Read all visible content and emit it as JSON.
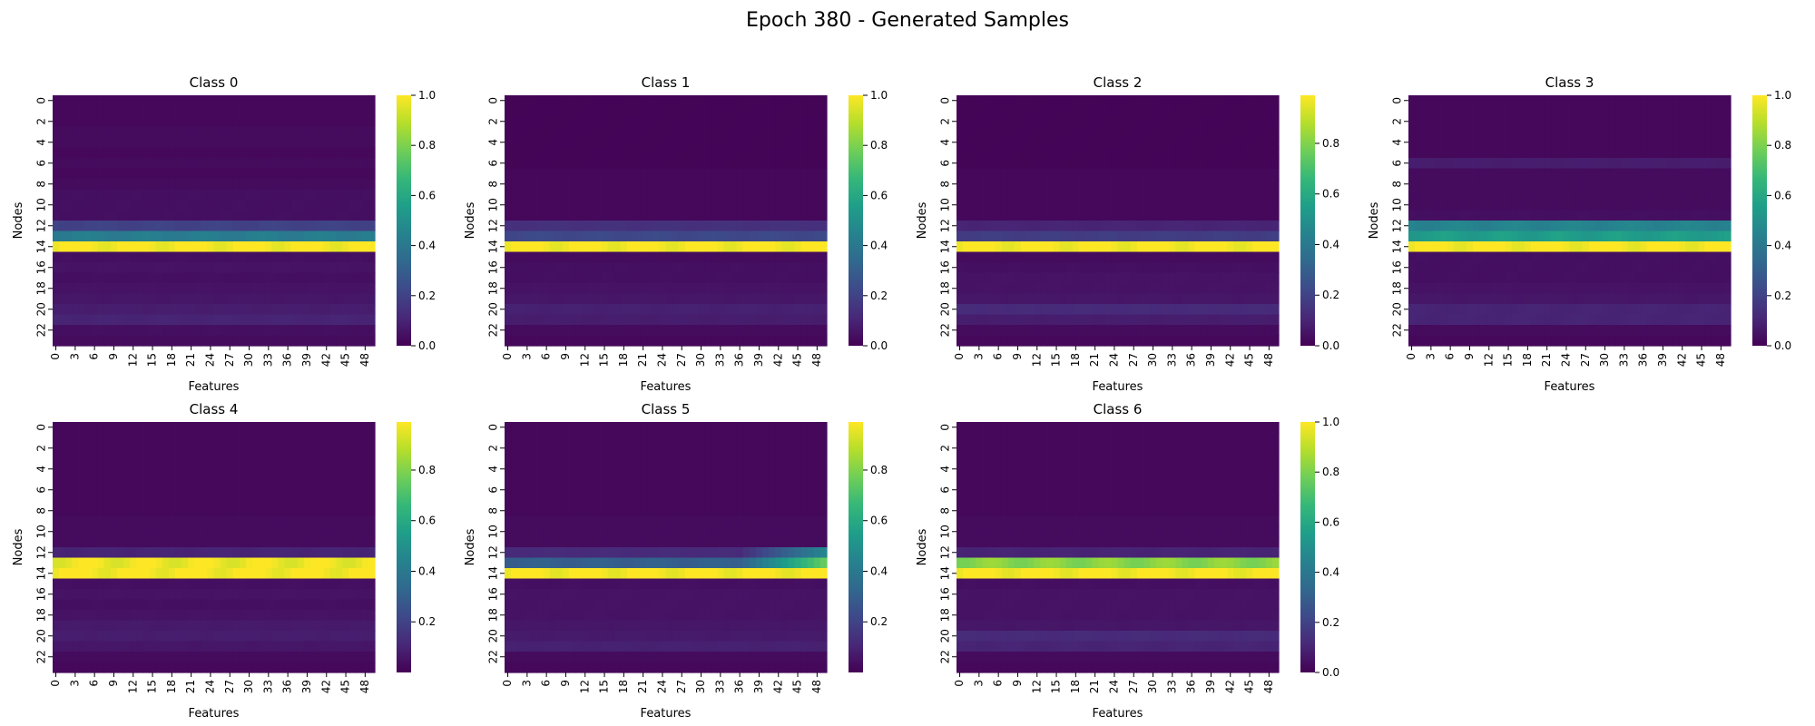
{
  "figure": {
    "title": "Epoch 380 - Generated Samples"
  },
  "colormap": {
    "name": "viridis",
    "stops": [
      "#440154",
      "#482878",
      "#3e4989",
      "#31688e",
      "#26828e",
      "#1f9e89",
      "#35b779",
      "#6ece58",
      "#b5de2b",
      "#fde725"
    ]
  },
  "chart_data": [
    {
      "type": "heatmap",
      "title": "Class 0",
      "xlabel": "Features",
      "ylabel": "Nodes",
      "n_rows": 24,
      "n_cols": 50,
      "xticks": [
        "0",
        "3",
        "6",
        "9",
        "12",
        "15",
        "18",
        "21",
        "24",
        "27",
        "30",
        "33",
        "36",
        "39",
        "42",
        "45",
        "48"
      ],
      "yticks": [
        "0",
        "2",
        "4",
        "6",
        "8",
        "10",
        "12",
        "14",
        "16",
        "18",
        "20",
        "22"
      ],
      "colorbar_ticks": [
        "0.0",
        "0.2",
        "0.4",
        "0.6",
        "0.8",
        "1.0"
      ],
      "vmin": 0.0,
      "vmax": 1.0,
      "row_values": [
        0.02,
        0.02,
        0.02,
        0.03,
        0.03,
        0.02,
        0.03,
        0.02,
        0.03,
        0.04,
        0.04,
        0.04,
        0.2,
        0.42,
        1.0,
        0.04,
        0.05,
        0.04,
        0.05,
        0.06,
        0.08,
        0.1,
        0.04,
        0.03
      ]
    },
    {
      "type": "heatmap",
      "title": "Class 1",
      "xlabel": "Features",
      "ylabel": "Nodes",
      "n_rows": 24,
      "n_cols": 50,
      "xticks": [
        "0",
        "3",
        "6",
        "9",
        "12",
        "15",
        "18",
        "21",
        "24",
        "27",
        "30",
        "33",
        "36",
        "39",
        "42",
        "45",
        "48"
      ],
      "yticks": [
        "0",
        "2",
        "4",
        "6",
        "8",
        "10",
        "12",
        "14",
        "16",
        "18",
        "20",
        "22"
      ],
      "colorbar_ticks": [
        "0.0",
        "0.2",
        "0.4",
        "0.6",
        "0.8",
        "1.0"
      ],
      "vmin": 0.0,
      "vmax": 1.0,
      "row_values": [
        0.01,
        0.01,
        0.01,
        0.01,
        0.01,
        0.01,
        0.01,
        0.02,
        0.02,
        0.02,
        0.02,
        0.02,
        0.14,
        0.22,
        1.0,
        0.03,
        0.04,
        0.04,
        0.05,
        0.06,
        0.09,
        0.08,
        0.03,
        0.02
      ]
    },
    {
      "type": "heatmap",
      "title": "Class 2",
      "xlabel": "Features",
      "ylabel": "Nodes",
      "n_rows": 24,
      "n_cols": 50,
      "xticks": [
        "0",
        "3",
        "6",
        "9",
        "12",
        "15",
        "18",
        "21",
        "24",
        "27",
        "30",
        "33",
        "36",
        "39",
        "42",
        "45",
        "48"
      ],
      "yticks": [
        "0",
        "2",
        "4",
        "6",
        "8",
        "10",
        "12",
        "14",
        "16",
        "18",
        "20",
        "22"
      ],
      "colorbar_ticks": [
        "0.0",
        "0.2",
        "0.4",
        "0.6",
        "0.8"
      ],
      "vmin": 0.0,
      "vmax": 0.99,
      "row_values": [
        0.01,
        0.01,
        0.01,
        0.01,
        0.01,
        0.01,
        0.01,
        0.02,
        0.02,
        0.02,
        0.02,
        0.02,
        0.1,
        0.18,
        0.99,
        0.03,
        0.04,
        0.05,
        0.05,
        0.06,
        0.12,
        0.08,
        0.03,
        0.02
      ]
    },
    {
      "type": "heatmap",
      "title": "Class 3",
      "xlabel": "Features",
      "ylabel": "Nodes",
      "n_rows": 24,
      "n_cols": 50,
      "xticks": [
        "0",
        "3",
        "6",
        "9",
        "12",
        "15",
        "18",
        "21",
        "24",
        "27",
        "30",
        "33",
        "36",
        "39",
        "42",
        "45",
        "48"
      ],
      "yticks": [
        "0",
        "2",
        "4",
        "6",
        "8",
        "10",
        "12",
        "14",
        "16",
        "18",
        "20",
        "22"
      ],
      "colorbar_ticks": [
        "0.0",
        "0.2",
        "0.4",
        "0.6",
        "0.8",
        "1.0"
      ],
      "vmin": 0.0,
      "vmax": 1.0,
      "row_values": [
        0.02,
        0.02,
        0.02,
        0.02,
        0.02,
        0.02,
        0.08,
        0.03,
        0.03,
        0.03,
        0.03,
        0.04,
        0.45,
        0.55,
        1.0,
        0.04,
        0.04,
        0.04,
        0.05,
        0.06,
        0.1,
        0.1,
        0.03,
        0.02
      ]
    },
    {
      "type": "heatmap",
      "title": "Class 4",
      "xlabel": "Features",
      "ylabel": "Nodes",
      "n_rows": 24,
      "n_cols": 50,
      "xticks": [
        "0",
        "3",
        "6",
        "9",
        "12",
        "15",
        "18",
        "21",
        "24",
        "27",
        "30",
        "33",
        "36",
        "39",
        "42",
        "45",
        "48"
      ],
      "yticks": [
        "0",
        "2",
        "4",
        "6",
        "8",
        "10",
        "12",
        "14",
        "16",
        "18",
        "20",
        "22"
      ],
      "colorbar_ticks": [
        "0.2",
        "0.4",
        "0.6",
        "0.8"
      ],
      "vmin": 0.0,
      "vmax": 0.99,
      "row_values": [
        0.02,
        0.02,
        0.02,
        0.02,
        0.02,
        0.02,
        0.02,
        0.02,
        0.02,
        0.03,
        0.03,
        0.03,
        0.1,
        0.97,
        0.99,
        0.04,
        0.05,
        0.04,
        0.05,
        0.07,
        0.08,
        0.06,
        0.03,
        0.02
      ]
    },
    {
      "type": "heatmap",
      "title": "Class 5",
      "xlabel": "Features",
      "ylabel": "Nodes",
      "n_rows": 24,
      "n_cols": 50,
      "xticks": [
        "0",
        "3",
        "6",
        "9",
        "12",
        "15",
        "18",
        "21",
        "24",
        "27",
        "30",
        "33",
        "36",
        "39",
        "42",
        "45",
        "48"
      ],
      "yticks": [
        "0",
        "2",
        "4",
        "6",
        "8",
        "10",
        "12",
        "14",
        "16",
        "18",
        "20",
        "22"
      ],
      "colorbar_ticks": [
        "0.2",
        "0.4",
        "0.6",
        "0.8"
      ],
      "vmin": 0.0,
      "vmax": 0.99,
      "row_values": [
        0.02,
        0.02,
        0.02,
        0.02,
        0.02,
        0.02,
        0.02,
        0.02,
        0.02,
        0.03,
        0.03,
        0.03,
        0.12,
        0.3,
        0.99,
        0.04,
        0.05,
        0.05,
        0.05,
        0.06,
        0.07,
        0.09,
        0.03,
        0.02
      ],
      "right_gradient": {
        "rows": [
          12,
          13
        ],
        "from_col": 36,
        "to_value": [
          0.45,
          0.75
        ]
      }
    },
    {
      "type": "heatmap",
      "title": "Class 6",
      "xlabel": "Features",
      "ylabel": "Nodes",
      "n_rows": 24,
      "n_cols": 50,
      "xticks": [
        "0",
        "3",
        "6",
        "9",
        "12",
        "15",
        "18",
        "21",
        "24",
        "27",
        "30",
        "33",
        "36",
        "39",
        "42",
        "45",
        "48"
      ],
      "yticks": [
        "0",
        "2",
        "4",
        "6",
        "8",
        "10",
        "12",
        "14",
        "16",
        "18",
        "20",
        "22"
      ],
      "colorbar_ticks": [
        "0.0",
        "0.2",
        "0.4",
        "0.6",
        "0.8",
        "1.0"
      ],
      "vmin": 0.0,
      "vmax": 1.0,
      "row_values": [
        0.02,
        0.02,
        0.02,
        0.02,
        0.02,
        0.02,
        0.02,
        0.02,
        0.02,
        0.03,
        0.03,
        0.03,
        0.1,
        0.82,
        1.0,
        0.04,
        0.05,
        0.05,
        0.05,
        0.06,
        0.12,
        0.1,
        0.03,
        0.02
      ]
    }
  ]
}
